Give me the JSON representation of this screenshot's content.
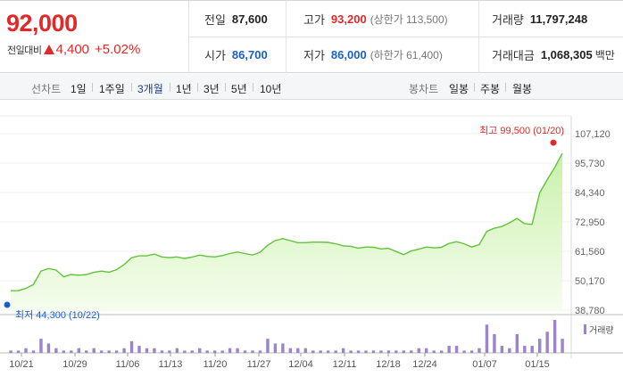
{
  "quote": {
    "price": "92,000",
    "change_label": "전일대비",
    "change_amount": "4,400",
    "change_rate": "+5.02%",
    "stats": {
      "prev_close": {
        "label": "전일",
        "value": "87,600"
      },
      "high": {
        "label": "고가",
        "value": "93,200",
        "sub": "(상한가 113,500)"
      },
      "volume": {
        "label": "거래량",
        "value": "11,797,248"
      },
      "open": {
        "label": "시가",
        "value": "86,700"
      },
      "low": {
        "label": "저가",
        "value": "86,000",
        "sub": "(하한가 61,400)"
      },
      "turnover": {
        "label": "거래대금",
        "value": "1,068,305",
        "unit": "백만"
      }
    }
  },
  "toolbar": {
    "line_chart_label": "선차트",
    "periods": [
      "1일",
      "1주일",
      "3개월",
      "1년",
      "3년",
      "5년",
      "10년"
    ],
    "active_period": "3개월",
    "candle_chart_label": "봉차트",
    "candle_periods": [
      "일봉",
      "주봉",
      "월봉"
    ]
  },
  "colors": {
    "up": "#e22828",
    "down": "#1a5fc8",
    "line": "#60c43a",
    "fill_top": "#c6f0a6",
    "volume": "#9b84c9"
  },
  "chart_data": {
    "type": "area",
    "y_ticks": [
      "107,120",
      "95,730",
      "84,340",
      "72,950",
      "61,560",
      "50,170",
      "38,780"
    ],
    "ylim": [
      38780,
      107120
    ],
    "x_ticks": [
      "10/21",
      "10/29",
      "11/06",
      "11/13",
      "11/20",
      "11/27",
      "12/04",
      "12/11",
      "12/18",
      "12/24",
      "01/07",
      "01/15"
    ],
    "max_label": "최고 99,500 (01/20)",
    "min_label": "최저 44,300 (10/22)",
    "max_value": 99500,
    "min_value": 44300,
    "volume_legend": "거래량",
    "prices": [
      46300,
      46300,
      47200,
      48700,
      53900,
      54900,
      54300,
      51700,
      52600,
      52300,
      52600,
      53400,
      53900,
      53500,
      54400,
      56400,
      59100,
      59800,
      59800,
      60500,
      59400,
      59100,
      59400,
      58800,
      59300,
      60100,
      59600,
      59400,
      59900,
      60700,
      61300,
      60700,
      60100,
      61200,
      63900,
      65700,
      66500,
      65700,
      64900,
      64900,
      65100,
      65100,
      65000,
      64500,
      63700,
      63500,
      62800,
      63200,
      63100,
      62500,
      62700,
      61500,
      60300,
      61700,
      62400,
      63200,
      62900,
      63100,
      64600,
      65300,
      64500,
      63200,
      64100,
      69300,
      70500,
      71200,
      72600,
      74300,
      72300,
      72000,
      84200,
      89300,
      94000,
      99500
    ],
    "volumes": [
      1,
      1,
      2,
      1,
      6,
      4,
      2,
      1,
      1,
      2,
      1,
      2,
      1,
      1,
      1,
      2,
      5,
      3,
      2,
      2,
      1,
      1,
      2,
      1,
      1,
      2,
      1,
      1,
      1,
      2,
      2,
      1,
      1,
      1,
      6,
      4,
      4,
      2,
      2,
      2,
      1,
      1,
      1,
      1,
      2,
      1,
      1,
      1,
      1,
      1,
      1,
      1,
      1,
      1,
      2,
      2,
      1,
      1,
      3,
      3,
      1,
      1,
      2,
      12,
      8,
      3,
      2,
      8,
      3,
      3,
      6,
      9,
      14,
      6
    ]
  }
}
